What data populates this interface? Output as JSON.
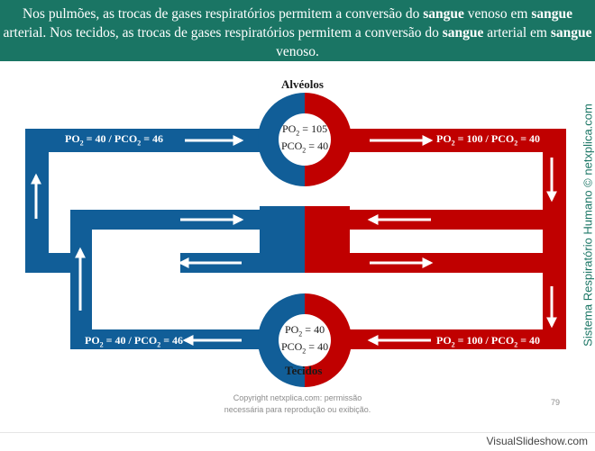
{
  "header": {
    "parts": [
      "Nos pulmões, as trocas de gases respiratórios permitem a conversão do ",
      "sangue",
      " venoso em ",
      "sangue",
      " arterial. Nos tecidos, as trocas de gases respiratórios permitem a conversão do ",
      "sangue",
      " arterial em ",
      "sangue",
      " venoso."
    ]
  },
  "labels": {
    "alveolos": "Alvéolos",
    "tecidos": "Tecidos",
    "po2": "PO",
    "pco2": "PCO",
    "sub2": "2",
    "val40": "40",
    "val46": "46",
    "val100": "100",
    "circle_top_po2": "105",
    "circle_bottom_po2": "40",
    "circle_top_pco2": "40",
    "circle_bottom_pco2": "40",
    "eq": " = ",
    "slash": " / "
  },
  "side_text": "Sistema Respiratório Humano © netxplica.com",
  "copyright": [
    "Copyright netxplica.com: permissão",
    "necessária para reprodução ou exibição."
  ],
  "page_number": "79",
  "footer": "VisualSlideshow.com",
  "colors": {
    "venous": "#115e98",
    "arterial": "#c00000",
    "banner": "#1a7564"
  }
}
